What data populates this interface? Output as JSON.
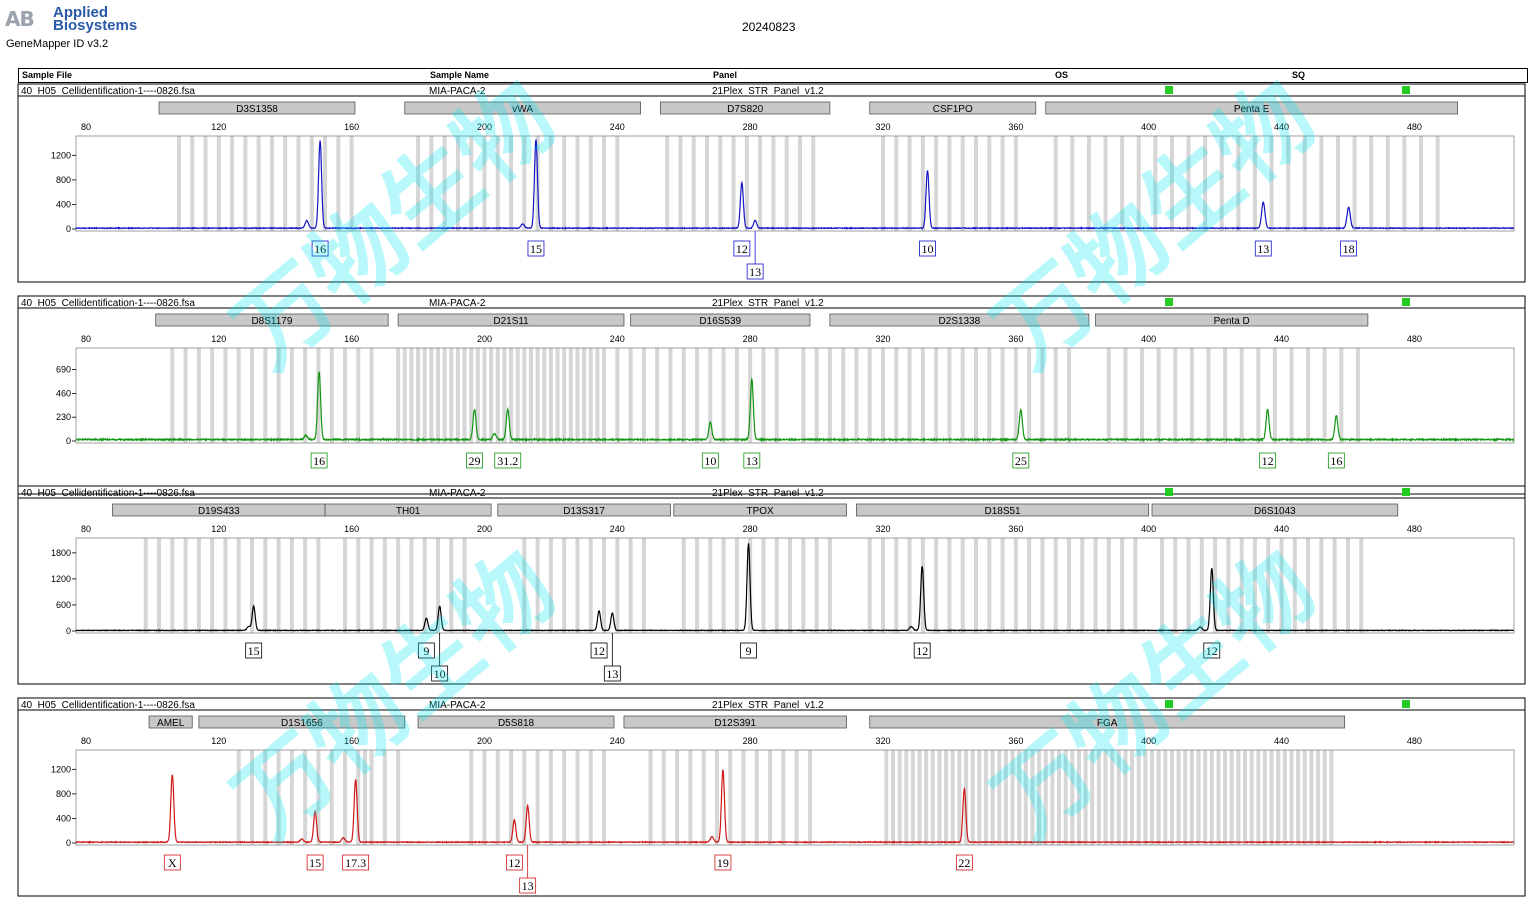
{
  "app": {
    "logo_mark": "AB",
    "brand_line1": "Applied",
    "brand_line2": "Biosystems",
    "version": "GeneMapper ID v3.2",
    "run_date": "20240823"
  },
  "columns": [
    "Sample File",
    "Sample Name",
    "Panel",
    "OS",
    "SQ"
  ],
  "watermark": "万物生物",
  "x_ticks": [
    80,
    120,
    160,
    200,
    240,
    280,
    320,
    360,
    400,
    440,
    480
  ],
  "colors": {
    "blue": "#1515c8",
    "green": "#129512",
    "black": "#000000",
    "red": "#d01818",
    "status": "#22cc22",
    "marker_box": "#c8c8c8",
    "bin": "#d6d6d6"
  },
  "chart_data": [
    {
      "type": "line",
      "dye": "blue",
      "sample_file": "40_H05_Cellidentification-1----0826.fsa",
      "sample_name": "MIA-PACA-2",
      "panel": "21Plex_STR_Panel_v1.2",
      "y_ticks": [
        0,
        400,
        800,
        1200
      ],
      "ylim": [
        0,
        1450
      ],
      "xlim": [
        77,
        510
      ],
      "markers": [
        {
          "name": "D3S1358",
          "start": 102,
          "end": 161
        },
        {
          "name": "vWA",
          "start": 176,
          "end": 247
        },
        {
          "name": "D7S820",
          "start": 253,
          "end": 304
        },
        {
          "name": "CSF1PO",
          "start": 316,
          "end": 366
        },
        {
          "name": "Penta E",
          "start": 369,
          "end": 493
        }
      ],
      "bins": [
        108,
        112,
        116,
        120,
        124,
        128,
        132,
        136,
        140,
        144,
        148,
        152,
        156,
        160,
        180,
        184,
        188,
        192,
        196,
        200,
        204,
        208,
        212,
        216,
        220,
        224,
        228,
        232,
        236,
        240,
        255,
        259,
        263,
        267,
        271,
        275,
        279,
        283,
        287,
        291,
        295,
        299,
        320,
        324,
        328,
        332,
        336,
        340,
        344,
        348,
        352,
        356,
        360,
        372,
        377,
        382,
        387,
        392,
        397,
        402,
        407,
        412,
        417,
        422,
        427,
        432,
        437,
        442,
        447,
        452,
        457,
        462,
        467,
        472,
        477,
        482,
        487
      ],
      "peaks": [
        {
          "x": 150.5,
          "h": 1420,
          "w": 0.45
        },
        {
          "x": 146.5,
          "h": 120,
          "w": 0.5
        },
        {
          "x": 215.5,
          "h": 1440,
          "w": 0.45
        },
        {
          "x": 211.5,
          "h": 70,
          "w": 0.5
        },
        {
          "x": 277.5,
          "h": 740,
          "w": 0.45
        },
        {
          "x": 281.5,
          "h": 130,
          "w": 0.45
        },
        {
          "x": 333.4,
          "h": 940,
          "w": 0.45
        },
        {
          "x": 434.5,
          "h": 420,
          "w": 0.5
        },
        {
          "x": 460.2,
          "h": 340,
          "w": 0.5
        }
      ],
      "alleles": [
        {
          "label": "16",
          "x": 150.5,
          "row": 0
        },
        {
          "label": "15",
          "x": 215.5,
          "row": 0
        },
        {
          "label": "12",
          "x": 277.5,
          "row": 0
        },
        {
          "label": "13",
          "x": 281.5,
          "row": 1
        },
        {
          "label": "10",
          "x": 333.4,
          "row": 0
        },
        {
          "label": "13",
          "x": 434.5,
          "row": 0
        },
        {
          "label": "18",
          "x": 460.2,
          "row": 0
        }
      ]
    },
    {
      "type": "line",
      "dye": "green",
      "sample_file": "40_H05_Cellidentification-1----0826.fsa",
      "sample_name": "MIA-PACA-2",
      "panel": "21Plex_STR_Panel_v1.2",
      "y_ticks": [
        0,
        230,
        460,
        690
      ],
      "ylim": [
        0,
        860
      ],
      "xlim": [
        77,
        510
      ],
      "markers": [
        {
          "name": "D8S1179",
          "start": 101,
          "end": 171
        },
        {
          "name": "D21S11",
          "start": 174,
          "end": 242
        },
        {
          "name": "D16S539",
          "start": 244,
          "end": 298
        },
        {
          "name": "D2S1338",
          "start": 304,
          "end": 382
        },
        {
          "name": "Penta D",
          "start": 384,
          "end": 466
        }
      ],
      "bins": [
        106,
        110,
        114,
        118,
        122,
        126,
        130,
        134,
        138,
        142,
        146,
        150,
        154,
        158,
        162,
        166,
        174,
        176,
        178,
        180,
        182,
        184,
        186,
        188,
        190,
        192,
        194,
        196,
        198,
        200,
        202,
        204,
        206,
        208,
        210,
        212,
        214,
        216,
        218,
        220,
        222,
        224,
        226,
        228,
        230,
        232,
        234,
        236,
        240,
        244,
        248,
        252,
        256,
        260,
        264,
        268,
        272,
        276,
        280,
        284,
        288,
        296,
        300,
        304,
        308,
        312,
        316,
        320,
        324,
        328,
        332,
        336,
        340,
        344,
        348,
        352,
        356,
        360,
        364,
        368,
        372,
        376,
        388,
        393,
        398,
        403,
        408,
        413,
        418,
        423,
        428,
        433,
        438,
        443,
        448,
        453,
        458,
        463
      ],
      "peaks": [
        {
          "x": 150.2,
          "h": 660,
          "w": 0.45
        },
        {
          "x": 146.2,
          "h": 40,
          "w": 0.5
        },
        {
          "x": 197,
          "h": 290,
          "w": 0.45
        },
        {
          "x": 203,
          "h": 60,
          "w": 0.5
        },
        {
          "x": 207,
          "h": 290,
          "w": 0.45
        },
        {
          "x": 268,
          "h": 170,
          "w": 0.45
        },
        {
          "x": 280.5,
          "h": 580,
          "w": 0.45
        },
        {
          "x": 361.5,
          "h": 290,
          "w": 0.45
        },
        {
          "x": 435.8,
          "h": 290,
          "w": 0.45
        },
        {
          "x": 456.5,
          "h": 230,
          "w": 0.45
        }
      ],
      "alleles": [
        {
          "label": "16",
          "x": 150.2,
          "row": 0
        },
        {
          "label": "29",
          "x": 197,
          "row": 0
        },
        {
          "label": "31.2",
          "x": 207,
          "row": 0
        },
        {
          "label": "10",
          "x": 268,
          "row": 0
        },
        {
          "label": "13",
          "x": 280.5,
          "row": 0
        },
        {
          "label": "25",
          "x": 361.5,
          "row": 0
        },
        {
          "label": "12",
          "x": 435.8,
          "row": 0
        },
        {
          "label": "16",
          "x": 456.5,
          "row": 0
        }
      ]
    },
    {
      "type": "line",
      "dye": "black",
      "sample_file": "40_H05_Cellidentification-1----0826.fsa",
      "sample_name": "MIA-PACA-2",
      "panel": "21Plex_STR_Panel_v1.2",
      "y_ticks": [
        0,
        600,
        1200,
        1800
      ],
      "ylim": [
        0,
        2050
      ],
      "xlim": [
        77,
        510
      ],
      "markers": [
        {
          "name": "D19S433",
          "start": 88,
          "end": 152
        },
        {
          "name": "TH01",
          "start": 152,
          "end": 202
        },
        {
          "name": "D13S317",
          "start": 204,
          "end": 256
        },
        {
          "name": "TPOX",
          "start": 257,
          "end": 309
        },
        {
          "name": "D18S51",
          "start": 312,
          "end": 400
        },
        {
          "name": "D6S1043",
          "start": 401,
          "end": 475
        }
      ],
      "bins": [
        98,
        102,
        106,
        110,
        114,
        118,
        122,
        126,
        130,
        134,
        138,
        142,
        146,
        150,
        158,
        162,
        166,
        170,
        174,
        178,
        182,
        186,
        190,
        194,
        212,
        216,
        220,
        224,
        228,
        232,
        236,
        240,
        244,
        248,
        260,
        264,
        268,
        272,
        276,
        280,
        284,
        288,
        292,
        296,
        300,
        304,
        316,
        320,
        324,
        328,
        332,
        336,
        340,
        344,
        348,
        352,
        356,
        360,
        364,
        368,
        372,
        376,
        380,
        384,
        388,
        392,
        396,
        404,
        408,
        412,
        416,
        420,
        424,
        428,
        432,
        436,
        440,
        444,
        448,
        452,
        456,
        460,
        464
      ],
      "peaks": [
        {
          "x": 130.5,
          "h": 560,
          "w": 0.45
        },
        {
          "x": 129,
          "h": 90,
          "w": 0.5
        },
        {
          "x": 182.5,
          "h": 280,
          "w": 0.45
        },
        {
          "x": 186.5,
          "h": 560,
          "w": 0.45
        },
        {
          "x": 234.5,
          "h": 450,
          "w": 0.45
        },
        {
          "x": 238.5,
          "h": 400,
          "w": 0.45
        },
        {
          "x": 279.5,
          "h": 2000,
          "w": 0.45
        },
        {
          "x": 331.8,
          "h": 1480,
          "w": 0.45
        },
        {
          "x": 328.5,
          "h": 90,
          "w": 0.5
        },
        {
          "x": 419,
          "h": 1430,
          "w": 0.45
        },
        {
          "x": 415.5,
          "h": 80,
          "w": 0.5
        }
      ],
      "alleles": [
        {
          "label": "15",
          "x": 130.5,
          "row": 0
        },
        {
          "label": "9",
          "x": 182.5,
          "row": 0
        },
        {
          "label": "10",
          "x": 186.5,
          "row": 1
        },
        {
          "label": "12",
          "x": 234.5,
          "row": 0
        },
        {
          "label": "13",
          "x": 238.5,
          "row": 1
        },
        {
          "label": "9",
          "x": 279.5,
          "row": 0
        },
        {
          "label": "12",
          "x": 331.8,
          "row": 0
        },
        {
          "label": "12",
          "x": 419,
          "row": 0
        }
      ]
    },
    {
      "type": "line",
      "dye": "red",
      "sample_file": "40_H05_Cellidentification-1----0826.fsa",
      "sample_name": "MIA-PACA-2",
      "panel": "21Plex_STR_Panel_v1.2",
      "y_ticks": [
        0,
        400,
        800,
        1200
      ],
      "ylim": [
        0,
        1450
      ],
      "xlim": [
        77,
        510
      ],
      "markers": [
        {
          "name": "AMEL",
          "start": 99,
          "end": 112
        },
        {
          "name": "D1S1656",
          "start": 114,
          "end": 176
        },
        {
          "name": "D5S818",
          "start": 180,
          "end": 239
        },
        {
          "name": "D12S391",
          "start": 242,
          "end": 309
        },
        {
          "name": "FGA",
          "start": 316,
          "end": 459
        }
      ],
      "bins": [
        126,
        130,
        134,
        138,
        142,
        146,
        150,
        154,
        158,
        162,
        164,
        166,
        170,
        174,
        196,
        200,
        204,
        208,
        212,
        216,
        220,
        224,
        228,
        232,
        236,
        250,
        254,
        258,
        262,
        266,
        270,
        274,
        278,
        282,
        286,
        290,
        294,
        298,
        321,
        323,
        325,
        327,
        329,
        331,
        333,
        335,
        337,
        339,
        341,
        343,
        345,
        347,
        349,
        351,
        353,
        355,
        357,
        359,
        361,
        363,
        365,
        367,
        369,
        371,
        373,
        375,
        377,
        379,
        381,
        383,
        385,
        387,
        389,
        391,
        393,
        395,
        397,
        399,
        401,
        403,
        405,
        407,
        409,
        411,
        413,
        415,
        417,
        419,
        421,
        423,
        425,
        427,
        429,
        431,
        433,
        435,
        437,
        439,
        441,
        443,
        445,
        447,
        449,
        451,
        453,
        455
      ],
      "peaks": [
        {
          "x": 106,
          "h": 1100,
          "w": 0.45
        },
        {
          "x": 149,
          "h": 500,
          "w": 0.45
        },
        {
          "x": 145,
          "h": 50,
          "w": 0.5
        },
        {
          "x": 161.2,
          "h": 1020,
          "w": 0.45
        },
        {
          "x": 157.5,
          "h": 70,
          "w": 0.5
        },
        {
          "x": 209,
          "h": 360,
          "w": 0.45
        },
        {
          "x": 213,
          "h": 590,
          "w": 0.45
        },
        {
          "x": 271.8,
          "h": 1180,
          "w": 0.45
        },
        {
          "x": 268.5,
          "h": 90,
          "w": 0.5
        },
        {
          "x": 344.5,
          "h": 870,
          "w": 0.45
        }
      ],
      "alleles": [
        {
          "label": "X",
          "x": 106,
          "row": 0
        },
        {
          "label": "15",
          "x": 149,
          "row": 0
        },
        {
          "label": "17.3",
          "x": 161.2,
          "row": 0
        },
        {
          "label": "12",
          "x": 209,
          "row": 0
        },
        {
          "label": "13",
          "x": 213,
          "row": 1
        },
        {
          "label": "19",
          "x": 271.8,
          "row": 0
        },
        {
          "label": "22",
          "x": 344.5,
          "row": 0
        }
      ]
    }
  ]
}
